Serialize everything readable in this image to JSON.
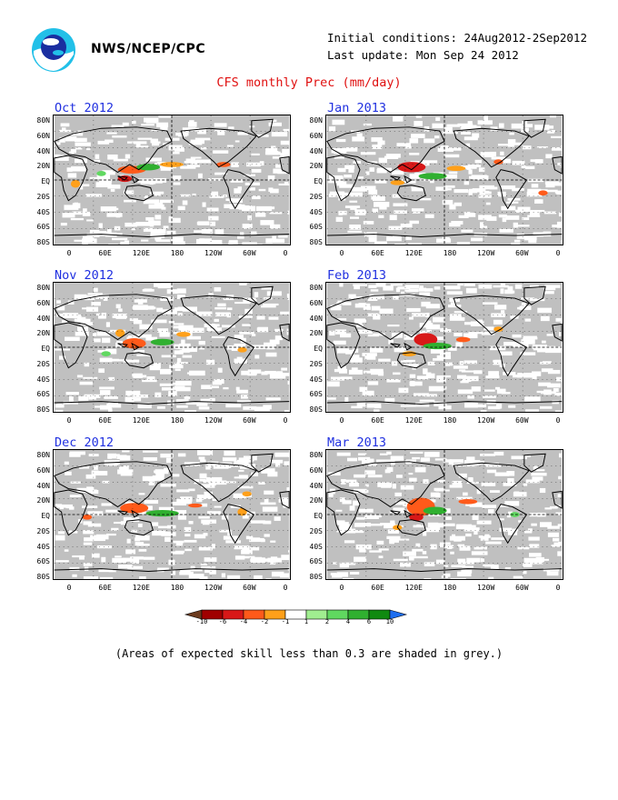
{
  "header": {
    "org": "NWS/NCEP/CPC",
    "initial_conditions": "Initial conditions: 24Aug2012-2Sep2012",
    "last_update": "Last update: Mon Sep 24 2012",
    "title": "CFS monthly Prec (mm/day)"
  },
  "colors": {
    "skill_mask_grey": "#c0c0c0",
    "title_red": "#e01010",
    "panel_title_blue": "#2030e0"
  },
  "icons": {
    "logo": "noaa-logo-icon"
  },
  "panels": [
    {
      "title": "Oct 2012"
    },
    {
      "title": "Jan 2013"
    },
    {
      "title": "Nov 2012"
    },
    {
      "title": "Feb 2013"
    },
    {
      "title": "Dec 2012"
    },
    {
      "title": "Mar 2013"
    }
  ],
  "lat_labels": [
    "80N",
    "60N",
    "40N",
    "20N",
    "EQ",
    "20S",
    "40S",
    "60S",
    "80S"
  ],
  "lon_labels": [
    "0",
    "60E",
    "120E",
    "180",
    "120W",
    "60W",
    "0"
  ],
  "colorbar": {
    "labels": [
      "-10",
      "-6",
      "-4",
      "-2",
      "-1",
      "1",
      "2",
      "4",
      "6",
      "10"
    ],
    "colors": [
      "#6b3a1e",
      "#a00000",
      "#d81818",
      "#ff5a1a",
      "#ffa01a",
      "#ffffff",
      "#a0ee90",
      "#60d860",
      "#30b030",
      "#108a10",
      "#1e6ef0"
    ]
  },
  "footnote": "(Areas of expected skill less than 0.3 are shaded in grey.)"
}
